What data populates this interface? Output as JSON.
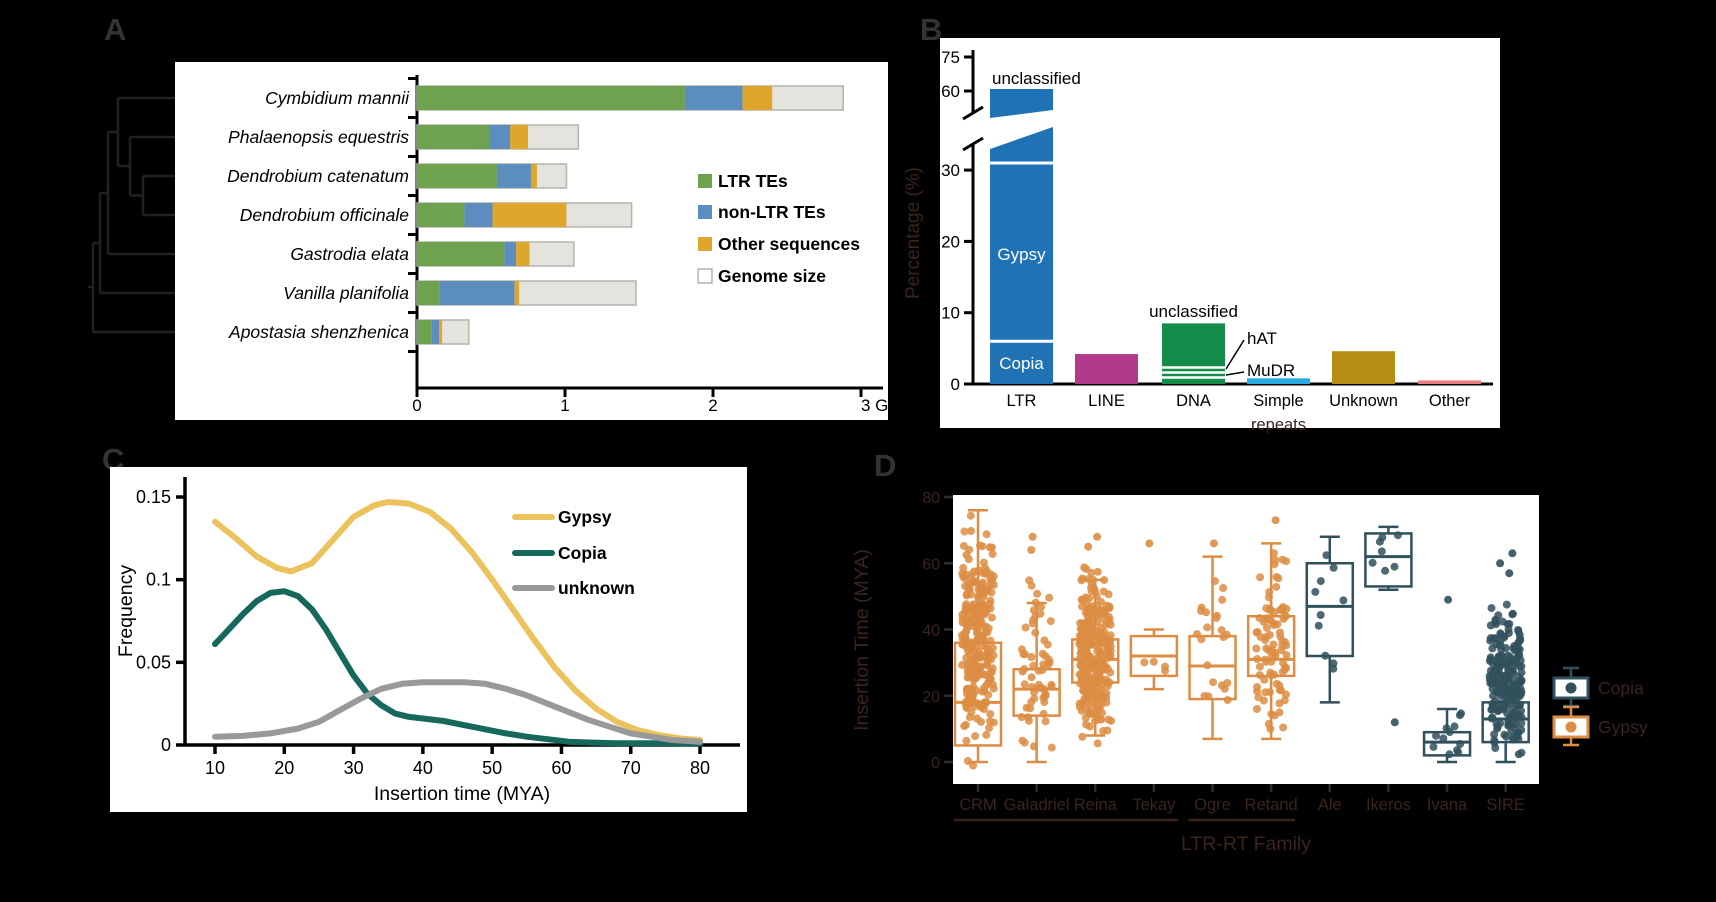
{
  "figure": {
    "background": "#000000",
    "faint_text_color": "#3a241c",
    "panel_labels": {
      "a": "A",
      "b": "B",
      "c": "C",
      "d": "D"
    }
  },
  "chart_data": [
    {
      "id": "panel_a",
      "type": "bar",
      "orientation": "horizontal",
      "categories": [
        "Cymbidium mannii",
        "Phalaenopsis equestris",
        "Dendrobium catenatum",
        "Dendrobium officinale",
        "Gastrodia elata",
        "Vanilla planifolia",
        "Apostasia shenzhenica"
      ],
      "series": [
        {
          "name": "LTR TEs",
          "color": "#6fa24e",
          "values": [
            1.81,
            0.49,
            0.54,
            0.32,
            0.59,
            0.15,
            0.1
          ]
        },
        {
          "name": "non-LTR TEs",
          "color": "#5b8dbf",
          "values": [
            0.39,
            0.14,
            0.23,
            0.19,
            0.08,
            0.51,
            0.05
          ]
        },
        {
          "name": "Other sequences",
          "color": "#dfa62c",
          "values": [
            0.2,
            0.12,
            0.04,
            0.5,
            0.09,
            0.03,
            0.02
          ]
        },
        {
          "name": "Genome size",
          "color": "#e5e3de",
          "values": [
            2.88,
            1.09,
            1.01,
            1.45,
            1.06,
            1.48,
            0.35
          ]
        }
      ],
      "genome_bar_border": "#b5b3ae",
      "x_ticks": [
        0,
        1,
        2,
        3
      ],
      "x_tick_labels": [
        "0",
        "1",
        "2",
        "3 Gb"
      ],
      "xlim": [
        0,
        3.2
      ],
      "legend_position": "right"
    },
    {
      "id": "panel_b",
      "type": "bar",
      "ylabel": "Percentage (%)",
      "categories": [
        "LTR",
        "LINE",
        "DNA",
        "Simple",
        "Unknown",
        "Other"
      ],
      "sub_label_under": "Simple",
      "sub_label": "repeats",
      "values": [
        61,
        4.2,
        8.5,
        0.8,
        4.6,
        0.5
      ],
      "colors": [
        "#1f72b4",
        "#b13a8a",
        "#148c4a",
        "#29abe2",
        "#b58d15",
        "#e87e80"
      ],
      "axis_break": [
        33,
        57
      ],
      "lower_ticks": [
        0,
        10,
        20,
        30
      ],
      "upper_ticks": [
        60,
        75
      ],
      "ltr_segments": {
        "copia": {
          "label": "Copia",
          "from": 0,
          "to": 6
        },
        "gypsy": {
          "label": "Gypsy",
          "from": 6,
          "to": 31
        },
        "unclassified": {
          "label": "unclassified",
          "from": 31,
          "to": 61
        }
      },
      "dna_annotations": {
        "unclassified_label": "unclassified",
        "hat": {
          "label": "hAT",
          "from": 1.6,
          "to": 2.3
        },
        "mudr": {
          "label": "MuDR",
          "from": 0.9,
          "to": 1.6
        }
      }
    },
    {
      "id": "panel_c",
      "type": "line",
      "xlabel": "Insertion time (MYA)",
      "ylabel": "Frequency",
      "x_ticks": [
        10,
        20,
        30,
        40,
        50,
        60,
        70,
        80
      ],
      "y_ticks": [
        0,
        0.05,
        0.1,
        0.15
      ],
      "y_tick_labels": [
        "0",
        "0.05",
        "0.1",
        "0.15"
      ],
      "xlim": [
        10,
        80
      ],
      "ylim": [
        0,
        0.15
      ],
      "legend_position": "top-right",
      "series": [
        {
          "name": "Gypsy",
          "color": "#ecc25c",
          "x": [
            10,
            13,
            16,
            19,
            21,
            24,
            27,
            30,
            33,
            35,
            38,
            41,
            44,
            47,
            50,
            53,
            56,
            59,
            62,
            65,
            68,
            71,
            74,
            77,
            80
          ],
          "y": [
            0.135,
            0.125,
            0.114,
            0.107,
            0.105,
            0.11,
            0.124,
            0.138,
            0.145,
            0.147,
            0.146,
            0.141,
            0.131,
            0.117,
            0.1,
            0.082,
            0.064,
            0.047,
            0.033,
            0.022,
            0.014,
            0.009,
            0.006,
            0.004,
            0.003
          ]
        },
        {
          "name": "Copia",
          "color": "#17685c",
          "x": [
            10,
            12,
            14,
            16,
            18,
            20,
            22,
            24,
            26,
            28,
            30,
            32,
            34,
            36,
            38,
            40,
            43,
            46,
            49,
            52,
            55,
            58,
            61,
            64,
            68,
            72,
            76,
            80
          ],
          "y": [
            0.061,
            0.07,
            0.079,
            0.087,
            0.092,
            0.093,
            0.09,
            0.082,
            0.07,
            0.056,
            0.042,
            0.031,
            0.024,
            0.019,
            0.017,
            0.016,
            0.0145,
            0.012,
            0.0095,
            0.007,
            0.005,
            0.0035,
            0.002,
            0.0015,
            0.001,
            0.001,
            0.001,
            0.0008
          ]
        },
        {
          "name": "unknown",
          "color": "#999999",
          "x": [
            10,
            14,
            18,
            22,
            25,
            28,
            31,
            34,
            37,
            40,
            43,
            46,
            49,
            52,
            55,
            58,
            61,
            64,
            67,
            70,
            73,
            76,
            80
          ],
          "y": [
            0.005,
            0.0055,
            0.007,
            0.01,
            0.014,
            0.021,
            0.028,
            0.034,
            0.037,
            0.038,
            0.038,
            0.038,
            0.037,
            0.034,
            0.03,
            0.025,
            0.02,
            0.015,
            0.011,
            0.007,
            0.005,
            0.003,
            0.002
          ]
        }
      ]
    },
    {
      "id": "panel_d",
      "type": "boxplot",
      "xlabel": "LTR-RT Family",
      "ylabel": "Insertion Time (MYA)",
      "y_ticks": [
        0,
        20,
        40,
        60,
        80
      ],
      "ylim": [
        -4,
        82
      ],
      "family_colors": {
        "Gypsy": "#dc8d43",
        "Copia": "#30505c"
      },
      "legend": [
        {
          "label": "Copia",
          "color": "#30505c"
        },
        {
          "label": "Gypsy",
          "color": "#dc8d43"
        }
      ],
      "group_underlines": [
        [
          0,
          3
        ],
        [
          4,
          5
        ]
      ],
      "groups": [
        {
          "name": "CRM",
          "family": "Gypsy",
          "q1": 5,
          "median": 18,
          "q3": 36,
          "whisker_low": 0,
          "whisker_high": 76,
          "points_n": 260,
          "points_range": [
            -2,
            77
          ],
          "outliers": []
        },
        {
          "name": "Galadriel",
          "family": "Gypsy",
          "q1": 14,
          "median": 22,
          "q3": 28,
          "whisker_low": 0,
          "whisker_high": 48,
          "points_n": 60,
          "points_range": [
            0,
            57
          ],
          "outliers": [
            64,
            68
          ]
        },
        {
          "name": "Reina",
          "family": "Gypsy",
          "q1": 24,
          "median": 31,
          "q3": 37,
          "whisker_low": 8,
          "whisker_high": 55,
          "points_n": 280,
          "points_range": [
            5,
            60
          ],
          "outliers": [
            65,
            68
          ]
        },
        {
          "name": "Tekay",
          "family": "Gypsy",
          "q1": 26,
          "median": 32,
          "q3": 38,
          "whisker_low": 22,
          "whisker_high": 40,
          "points_n": 4,
          "points_range": [
            23,
            39
          ],
          "outliers": [
            66
          ]
        },
        {
          "name": "Ogre",
          "family": "Gypsy",
          "q1": 19,
          "median": 29,
          "q3": 38,
          "whisker_low": 7,
          "whisker_high": 62,
          "points_n": 22,
          "points_range": [
            8,
            60
          ],
          "outliers": [
            66
          ]
        },
        {
          "name": "Retand",
          "family": "Gypsy",
          "q1": 26,
          "median": 31,
          "q3": 44,
          "whisker_low": 7,
          "whisker_high": 66,
          "points_n": 90,
          "points_range": [
            5,
            66
          ],
          "outliers": [
            73
          ]
        },
        {
          "name": "Ale",
          "family": "Copia",
          "q1": 32,
          "median": 47,
          "q3": 60,
          "whisker_low": 18,
          "whisker_high": 68,
          "points_n": 10,
          "points_range": [
            19,
            68
          ],
          "outliers": []
        },
        {
          "name": "Ikeros",
          "family": "Copia",
          "q1": 53,
          "median": 62,
          "q3": 69,
          "whisker_low": 52,
          "whisker_high": 71,
          "points_n": 7,
          "points_range": [
            52,
            71
          ],
          "outliers": [
            12
          ]
        },
        {
          "name": "Ivana",
          "family": "Copia",
          "q1": 2,
          "median": 6,
          "q3": 9,
          "whisker_low": 0,
          "whisker_high": 16,
          "points_n": 12,
          "points_range": [
            0,
            16
          ],
          "outliers": [
            49
          ]
        },
        {
          "name": "SIRE",
          "family": "Copia",
          "q1": 6,
          "median": 13,
          "q3": 18,
          "whisker_low": 0,
          "whisker_high": 30,
          "points_n": 210,
          "points_range": [
            0,
            50
          ],
          "outliers": [
            57,
            60,
            63
          ]
        }
      ]
    }
  ]
}
